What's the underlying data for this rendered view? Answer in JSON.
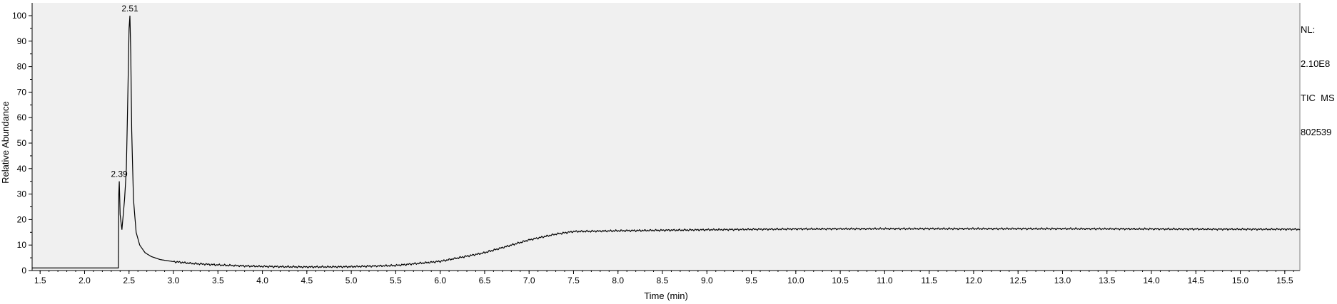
{
  "chart_data": {
    "type": "line",
    "title": "",
    "xlabel": "Time (min)",
    "ylabel": "Relative Abundance",
    "xlim": [
      1.41,
      15.67
    ],
    "ylim": [
      0,
      100
    ],
    "x_ticks": [
      "1.5",
      "2.0",
      "2.5",
      "3.0",
      "3.5",
      "4.0",
      "4.5",
      "5.0",
      "5.5",
      "6.0",
      "6.5",
      "7.0",
      "7.5",
      "8.0",
      "8.5",
      "9.0",
      "9.5",
      "10.0",
      "10.5",
      "11.0",
      "11.5",
      "12.0",
      "12.5",
      "13.0",
      "13.5",
      "14.0",
      "14.5",
      "15.0",
      "15.5"
    ],
    "y_ticks": [
      "0",
      "10",
      "20",
      "30",
      "40",
      "50",
      "60",
      "70",
      "80",
      "90",
      "100"
    ],
    "grid": false,
    "plot_background": "#f0f0f0",
    "line_color": "#000000",
    "series": [
      {
        "x": [
          1.41,
          2.38,
          2.385,
          2.39,
          2.4,
          2.42,
          2.45,
          2.47,
          2.49,
          2.5,
          2.51,
          2.52,
          2.53,
          2.55,
          2.58,
          2.62,
          2.68,
          2.75,
          2.85,
          3.0,
          3.2,
          3.5,
          3.8,
          4.0,
          4.5,
          5.0,
          5.5,
          6.0,
          6.5,
          7.0,
          7.3,
          7.5,
          8.0,
          9.0,
          10.0,
          11.0,
          12.0,
          13.0,
          14.0,
          15.0,
          15.67
        ],
        "y": [
          1.0,
          1.0,
          30,
          35,
          22,
          16,
          28,
          40,
          75,
          95,
          100,
          85,
          55,
          28,
          15,
          10,
          7,
          5.5,
          4.3,
          3.5,
          2.8,
          2.2,
          1.8,
          1.6,
          1.4,
          1.5,
          2.0,
          3.6,
          7.0,
          12.0,
          14.3,
          15.3,
          15.6,
          16.0,
          16.3,
          16.4,
          16.4,
          16.4,
          16.3,
          16.2,
          16.2
        ]
      }
    ],
    "peak_labels": [
      {
        "x": 2.51,
        "y": 100,
        "text": "2.51"
      },
      {
        "x": 2.39,
        "y": 35,
        "text": "2.39"
      }
    ]
  },
  "info_box": {
    "nl_label": "NL:",
    "nl_value": "2.10E8",
    "trace": "TIC  MS",
    "file": "802539"
  }
}
